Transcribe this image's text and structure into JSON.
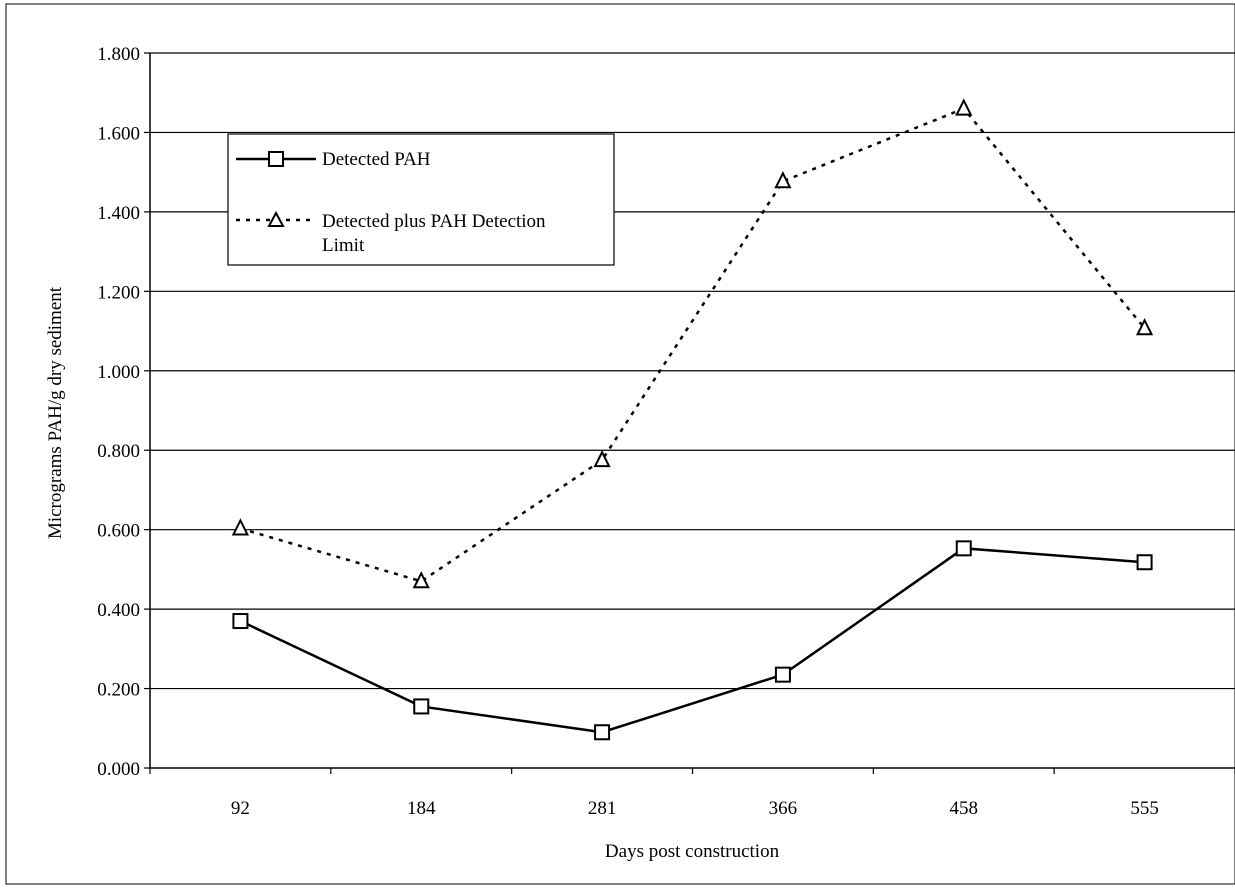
{
  "chart_data": {
    "type": "line",
    "title": "",
    "xlabel": "Days post construction",
    "ylabel": "Micrograms PAH/g dry sediment",
    "categories": [
      "92",
      "184",
      "281",
      "366",
      "458",
      "555"
    ],
    "ylim": [
      0,
      1.8
    ],
    "yticks": [
      "0.000",
      "0.200",
      "0.400",
      "0.600",
      "0.800",
      "1.000",
      "1.200",
      "1.400",
      "1.600",
      "1.800"
    ],
    "grid": true,
    "legend_position": "top-left",
    "series": [
      {
        "name": "Detected PAH",
        "values": [
          0.37,
          0.155,
          0.09,
          0.235,
          0.553,
          0.518
        ],
        "line_style": "solid",
        "marker": "square",
        "color": "#000000"
      },
      {
        "name": "Detected plus PAH Detection Limit",
        "values": [
          0.603,
          0.47,
          0.775,
          1.477,
          1.66,
          1.107
        ],
        "line_style": "dotted",
        "marker": "triangle",
        "color": "#000000"
      }
    ]
  }
}
